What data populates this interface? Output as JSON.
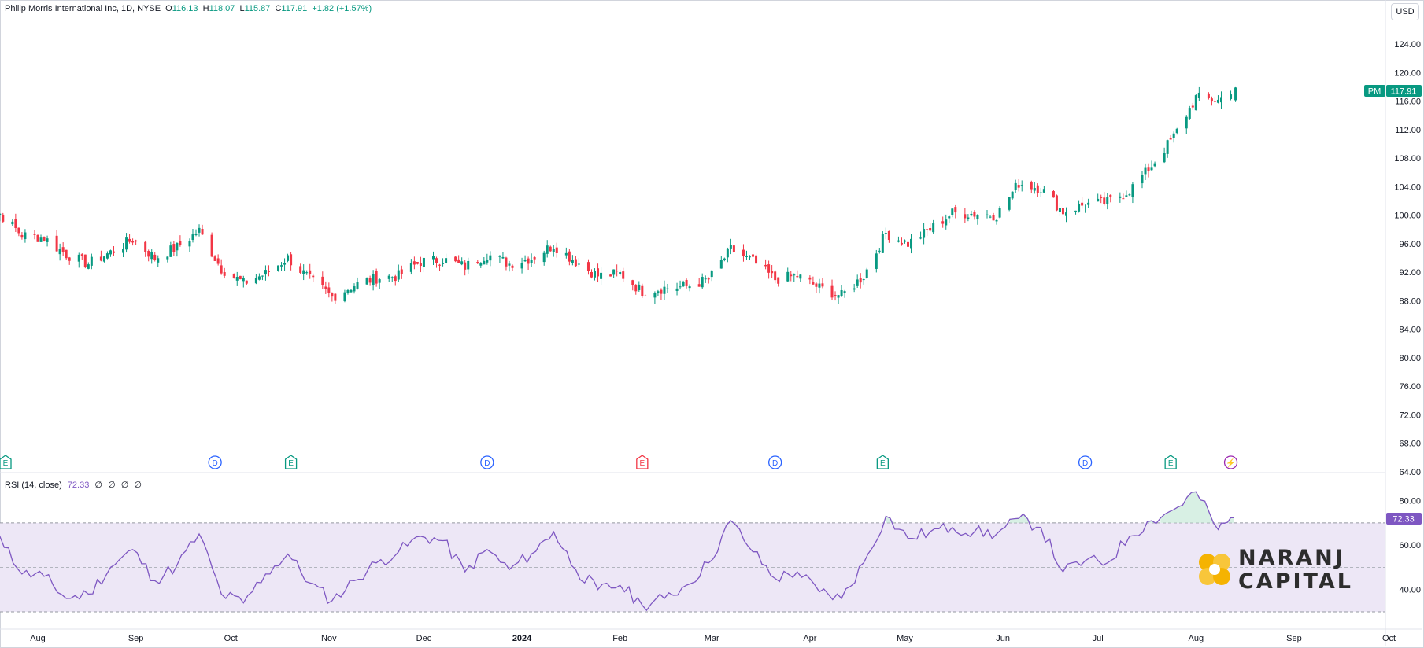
{
  "legend": {
    "title": "Philip Morris International Inc, 1D, NYSE",
    "o_label": "O",
    "o_value": "116.13",
    "h_label": "H",
    "h_value": "118.07",
    "l_label": "L",
    "l_value": "115.87",
    "c_label": "C",
    "c_value": "117.91",
    "change": "+1.82 (+1.57%)"
  },
  "currency": "USD",
  "price_tag": {
    "symbol": "PM",
    "value": "117.91"
  },
  "rsi": {
    "label": "RSI (14, close)",
    "value": "72.33",
    "placeholders": [
      "∅",
      "∅",
      "∅",
      "∅"
    ]
  },
  "logo": {
    "line1": "NARANJ",
    "line2": "CAPITAL"
  },
  "colors": {
    "up": "#089981",
    "down": "#f23645",
    "rsi_line": "#7e57c2",
    "rsi_band": "#ede7f6",
    "rsi_overbought_fill": "#c8ead8",
    "dividend": "#2962ff",
    "earnings_up": "#089981",
    "earnings_down": "#f23645",
    "logo_accent": "#f5b301"
  },
  "chart_data": [
    {
      "type": "candlestick",
      "title": "Philip Morris International Inc, 1D, NYSE",
      "y_axis_labels": [
        "124.00",
        "120.00",
        "116.00",
        "112.00",
        "108.00",
        "104.00",
        "100.00",
        "96.00",
        "92.00",
        "88.00",
        "84.00",
        "80.00",
        "76.00",
        "72.00",
        "68.00",
        "64.00"
      ],
      "ylim": [
        64,
        126
      ],
      "x_axis_labels": [
        "Aug",
        "Sep",
        "Oct",
        "Nov",
        "Dec",
        "2024",
        "Feb",
        "Mar",
        "Apr",
        "May",
        "Jun",
        "Jul",
        "Aug",
        "Sep",
        "Oct"
      ],
      "x_axis_dates": [
        "2023-08-01",
        "2023-09-01",
        "2023-10-01",
        "2023-11-01",
        "2023-12-01",
        "2024-01-01",
        "2024-02-01",
        "2024-03-01",
        "2024-04-01",
        "2024-05-01",
        "2024-06-01",
        "2024-07-01",
        "2024-08-01",
        "2024-09-01",
        "2024-10-01"
      ],
      "close_series": [
        [
          "2023-07-13",
          99.5
        ],
        [
          "2023-07-20",
          100.2
        ],
        [
          "2023-07-27",
          97.2
        ],
        [
          "2023-08-03",
          96.8
        ],
        [
          "2023-08-10",
          94.5
        ],
        [
          "2023-08-17",
          93.2
        ],
        [
          "2023-08-24",
          94.8
        ],
        [
          "2023-08-31",
          96.6
        ],
        [
          "2023-09-07",
          94.0
        ],
        [
          "2023-09-14",
          95.5
        ],
        [
          "2023-09-21",
          97.8
        ],
        [
          "2023-09-28",
          92.5
        ],
        [
          "2023-10-05",
          90.5
        ],
        [
          "2023-10-12",
          91.8
        ],
        [
          "2023-10-19",
          94.0
        ],
        [
          "2023-10-26",
          91.0
        ],
        [
          "2023-11-02",
          88.5
        ],
        [
          "2023-11-09",
          90.2
        ],
        [
          "2023-11-16",
          91.2
        ],
        [
          "2023-11-23",
          91.5
        ],
        [
          "2023-11-30",
          93.5
        ],
        [
          "2023-12-07",
          93.8
        ],
        [
          "2023-12-14",
          92.8
        ],
        [
          "2023-12-21",
          94.5
        ],
        [
          "2023-12-28",
          93.2
        ],
        [
          "2024-01-04",
          94.0
        ],
        [
          "2024-01-11",
          95.8
        ],
        [
          "2024-01-18",
          93.5
        ],
        [
          "2024-01-25",
          91.5
        ],
        [
          "2024-02-01",
          91.8
        ],
        [
          "2024-02-08",
          89.3
        ],
        [
          "2024-02-15",
          89.8
        ],
        [
          "2024-02-22",
          90.0
        ],
        [
          "2024-02-29",
          91.0
        ],
        [
          "2024-03-07",
          95.2
        ],
        [
          "2024-03-14",
          93.5
        ],
        [
          "2024-03-21",
          91.0
        ],
        [
          "2024-03-28",
          91.5
        ],
        [
          "2024-04-04",
          89.8
        ],
        [
          "2024-04-11",
          88.7
        ],
        [
          "2024-04-18",
          91.5
        ],
        [
          "2024-04-25",
          97.5
        ],
        [
          "2024-05-02",
          96.0
        ],
        [
          "2024-05-09",
          98.0
        ],
        [
          "2024-05-16",
          100.3
        ],
        [
          "2024-05-23",
          100.2
        ],
        [
          "2024-05-30",
          100.0
        ],
        [
          "2024-06-06",
          104.5
        ],
        [
          "2024-06-13",
          103.8
        ],
        [
          "2024-06-20",
          100.5
        ],
        [
          "2024-06-27",
          101.5
        ],
        [
          "2024-07-04",
          101.8
        ],
        [
          "2024-07-11",
          103.5
        ],
        [
          "2024-07-18",
          107.0
        ],
        [
          "2024-07-25",
          111.0
        ],
        [
          "2024-08-01",
          116.5
        ],
        [
          "2024-08-08",
          116.1
        ],
        [
          "2024-08-13",
          117.91
        ]
      ],
      "last": {
        "open": 116.13,
        "high": 118.07,
        "low": 115.87,
        "close": 117.91
      }
    },
    {
      "type": "line",
      "title": "RSI (14, close)",
      "y_axis_labels": [
        "80.00",
        "60.00",
        "40.00"
      ],
      "ylim": [
        30,
        88
      ],
      "bands": [
        30,
        50,
        70
      ],
      "series": [
        {
          "name": "RSI",
          "points": [
            [
              "2023-07-13",
              55
            ],
            [
              "2023-07-20",
              64
            ],
            [
              "2023-07-27",
              47
            ],
            [
              "2023-08-03",
              46
            ],
            [
              "2023-08-10",
              36
            ],
            [
              "2023-08-17",
              38
            ],
            [
              "2023-08-24",
              50
            ],
            [
              "2023-08-31",
              58
            ],
            [
              "2023-09-07",
              44
            ],
            [
              "2023-09-14",
              51
            ],
            [
              "2023-09-21",
              65
            ],
            [
              "2023-09-28",
              38
            ],
            [
              "2023-10-05",
              34
            ],
            [
              "2023-10-12",
              47
            ],
            [
              "2023-10-19",
              56
            ],
            [
              "2023-10-26",
              43
            ],
            [
              "2023-11-02",
              35
            ],
            [
              "2023-11-09",
              44
            ],
            [
              "2023-11-16",
              52
            ],
            [
              "2023-11-23",
              57
            ],
            [
              "2023-11-30",
              64
            ],
            [
              "2023-12-07",
              62
            ],
            [
              "2023-12-14",
              48
            ],
            [
              "2023-12-21",
              58
            ],
            [
              "2023-12-28",
              49
            ],
            [
              "2024-01-04",
              56
            ],
            [
              "2024-01-11",
              66
            ],
            [
              "2024-01-18",
              49
            ],
            [
              "2024-01-25",
              40
            ],
            [
              "2024-02-01",
              42
            ],
            [
              "2024-02-08",
              33
            ],
            [
              "2024-02-15",
              36
            ],
            [
              "2024-02-22",
              42
            ],
            [
              "2024-02-29",
              52
            ],
            [
              "2024-03-07",
              71
            ],
            [
              "2024-03-14",
              57
            ],
            [
              "2024-03-21",
              45
            ],
            [
              "2024-03-28",
              48
            ],
            [
              "2024-04-04",
              39
            ],
            [
              "2024-04-11",
              36
            ],
            [
              "2024-04-18",
              52
            ],
            [
              "2024-04-25",
              73
            ],
            [
              "2024-05-02",
              63
            ],
            [
              "2024-05-09",
              66
            ],
            [
              "2024-05-16",
              68
            ],
            [
              "2024-05-23",
              66
            ],
            [
              "2024-05-30",
              65
            ],
            [
              "2024-06-06",
              72
            ],
            [
              "2024-06-13",
              68
            ],
            [
              "2024-06-20",
              48
            ],
            [
              "2024-06-27",
              53
            ],
            [
              "2024-07-04",
              52
            ],
            [
              "2024-07-11",
              64
            ],
            [
              "2024-07-18",
              71
            ],
            [
              "2024-07-25",
              76
            ],
            [
              "2024-08-01",
              84
            ],
            [
              "2024-08-08",
              67
            ],
            [
              "2024-08-13",
              72.33
            ]
          ]
        }
      ]
    }
  ],
  "events": [
    {
      "date": "2023-07-09",
      "type": "E",
      "kind": "earnings_up"
    },
    {
      "date": "2023-09-26",
      "type": "D",
      "kind": "dividend"
    },
    {
      "date": "2023-10-20",
      "type": "E",
      "kind": "earnings_up"
    },
    {
      "date": "2023-12-21",
      "type": "D",
      "kind": "dividend"
    },
    {
      "date": "2024-02-08",
      "type": "E",
      "kind": "earnings_down"
    },
    {
      "date": "2024-03-21",
      "type": "D",
      "kind": "dividend"
    },
    {
      "date": "2024-04-24",
      "type": "E",
      "kind": "earnings_up"
    },
    {
      "date": "2024-06-27",
      "type": "D",
      "kind": "dividend"
    },
    {
      "date": "2024-07-24",
      "type": "E",
      "kind": "earnings_up"
    },
    {
      "date": "2024-08-12",
      "type": "⚡",
      "kind": "split"
    }
  ]
}
